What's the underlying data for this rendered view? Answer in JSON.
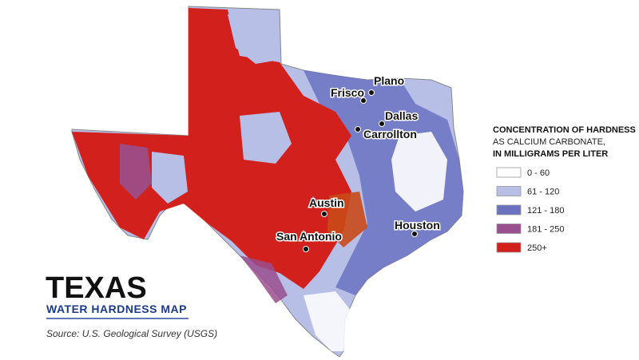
{
  "title": "TEXAS",
  "subtitle": "WATER HARDNESS MAP",
  "source": "Source: U.S. Geological Survey (USGS)",
  "legend": {
    "title": "CONCENTRATION OF HARDNESS",
    "subtitle_lines": [
      "AS CALCIUM CARBONATE,",
      "IN MILLIGRAMS PER LITER"
    ],
    "items": [
      {
        "label": "0 - 60",
        "color": "#ffffff"
      },
      {
        "label": "61 - 120",
        "color": "#b7bfe6"
      },
      {
        "label": "121 - 180",
        "color": "#6a72c0"
      },
      {
        "label": "181 - 250",
        "color": "#9a4f8e"
      },
      {
        "label": "250+",
        "color": "#d2201d"
      }
    ]
  },
  "cities": [
    {
      "label": "Plano"
    },
    {
      "label": "Frisco"
    },
    {
      "label": "Dallas"
    },
    {
      "label": "Carrollton"
    },
    {
      "label": "Austin"
    },
    {
      "label": "San Antonio"
    },
    {
      "label": "Houston"
    }
  ]
}
